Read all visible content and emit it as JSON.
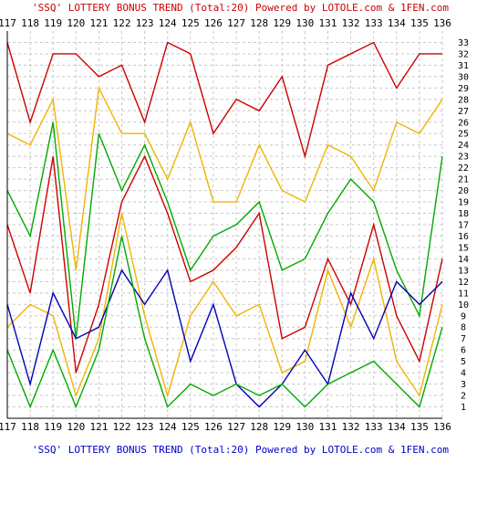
{
  "header": {
    "caption": "'SSQ' LOTTERY BONUS TREND (Total:20)  Powered by LOTOLE.com & 1FEN.com"
  },
  "footer": {
    "caption": "'SSQ' LOTTERY BONUS TREND (Total:20)  Powered by LOTOLE.com & 1FEN.com"
  },
  "colors": {
    "caption": "#cc0000",
    "footer_caption": "#0000cc",
    "grid": "#c8c8c8",
    "axis": "#000000"
  },
  "chart_data": {
    "type": "line",
    "title": "'SSQ' LOTTERY BONUS TREND (Total:20)",
    "x": [
      "117",
      "118",
      "119",
      "120",
      "121",
      "122",
      "123",
      "124",
      "125",
      "126",
      "127",
      "128",
      "129",
      "130",
      "131",
      "132",
      "133",
      "134",
      "135",
      "136"
    ],
    "y_ticks": [
      1,
      2,
      3,
      4,
      5,
      6,
      7,
      8,
      9,
      10,
      11,
      12,
      13,
      14,
      15,
      16,
      17,
      18,
      19,
      20,
      21,
      22,
      23,
      24,
      25,
      26,
      27,
      28,
      29,
      30,
      31,
      32,
      33
    ],
    "ylim": [
      0,
      34
    ],
    "grid": true,
    "series": [
      {
        "color": "#cc0000",
        "values": [
          33,
          26,
          32,
          32,
          30,
          31,
          26,
          33,
          32,
          25,
          28,
          27,
          30,
          23,
          31,
          32,
          33,
          29,
          32,
          32
        ]
      },
      {
        "color": "#f0b400",
        "values": [
          25,
          24,
          28,
          13,
          29,
          25,
          25,
          21,
          26,
          19,
          19,
          24,
          20,
          19,
          24,
          23,
          20,
          26,
          25,
          28
        ]
      },
      {
        "color": "#00aa00",
        "values": [
          20,
          16,
          26,
          7,
          25,
          20,
          24,
          19,
          13,
          16,
          17,
          19,
          13,
          14,
          18,
          21,
          19,
          13,
          9,
          23
        ]
      },
      {
        "color": "#cc0000",
        "values": [
          17,
          11,
          23,
          4,
          10,
          19,
          23,
          18,
          12,
          13,
          15,
          18,
          7,
          8,
          14,
          10,
          17,
          9,
          5,
          14
        ]
      },
      {
        "color": "#f0b400",
        "values": [
          8,
          10,
          9,
          2,
          7,
          18,
          9,
          2,
          9,
          12,
          9,
          10,
          4,
          5,
          13,
          8,
          14,
          5,
          2,
          10
        ]
      },
      {
        "color": "#0000bb",
        "values": [
          10,
          3,
          11,
          7,
          8,
          13,
          10,
          13,
          5,
          10,
          3,
          1,
          3,
          6,
          3,
          11,
          7,
          12,
          10,
          12
        ]
      },
      {
        "color": "#00aa00",
        "values": [
          6,
          1,
          6,
          1,
          6,
          16,
          7,
          1,
          3,
          2,
          3,
          2,
          3,
          1,
          3,
          4,
          5,
          3,
          1,
          8
        ]
      }
    ]
  }
}
